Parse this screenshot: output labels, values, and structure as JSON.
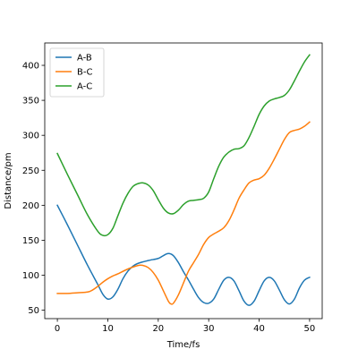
{
  "chart_data": {
    "type": "line",
    "xlabel": "Time/fs",
    "ylabel": "Distance/pm",
    "xlim": [
      -2.5,
      52.5
    ],
    "ylim": [
      38,
      432
    ],
    "xticks": [
      0,
      10,
      20,
      30,
      40,
      50
    ],
    "yticks": [
      50,
      100,
      150,
      200,
      250,
      300,
      350,
      400
    ],
    "grid": false,
    "legend": "top-left",
    "series": [
      {
        "name": "A-B",
        "color": "#1f77b4",
        "x": [
          0,
          2,
          4,
          6,
          8,
          9,
          10,
          11,
          12,
          13,
          14,
          15,
          16,
          18,
          20,
          21,
          22,
          23,
          24,
          25,
          26,
          27,
          28,
          29,
          30,
          31,
          32,
          33,
          34,
          35,
          36,
          37,
          38,
          39,
          40,
          41,
          42,
          43,
          44,
          45,
          46,
          47,
          48,
          49,
          50
        ],
        "y": [
          200,
          172,
          143,
          114,
          87,
          73,
          66,
          69,
          80,
          95,
          106,
          113,
          117,
          121,
          124,
          128,
          131,
          128,
          118,
          105,
          93,
          80,
          68,
          61,
          60,
          66,
          80,
          93,
          97,
          92,
          78,
          63,
          57,
          63,
          78,
          92,
          97,
          92,
          79,
          65,
          59,
          66,
          82,
          93,
          97
        ]
      },
      {
        "name": "B-C",
        "color": "#ff7f0e",
        "x": [
          0,
          2,
          4,
          6,
          7,
          8,
          9,
          10,
          11,
          12,
          14,
          16,
          17,
          18,
          19,
          20,
          21,
          22,
          22.5,
          23,
          24,
          25,
          26,
          27,
          28,
          29,
          30,
          31,
          32,
          33,
          34,
          35,
          36,
          37,
          38,
          39,
          40,
          41,
          42,
          43,
          44,
          45,
          46,
          47,
          48,
          49,
          50
        ],
        "y": [
          74,
          74,
          75,
          76,
          79,
          84,
          90,
          95,
          99,
          102,
          109,
          114,
          114,
          111,
          104,
          93,
          78,
          63,
          59,
          60,
          72,
          89,
          106,
          118,
          130,
          144,
          154,
          159,
          163,
          168,
          178,
          193,
          210,
          222,
          232,
          236,
          238,
          243,
          253,
          266,
          280,
          294,
          304,
          307,
          309,
          313,
          319
        ]
      },
      {
        "name": "A-C",
        "color": "#2ca02c",
        "x": [
          0,
          2,
          4,
          6,
          8,
          9,
          10,
          11,
          12,
          13,
          14,
          15,
          16,
          17,
          18,
          19,
          20,
          21,
          22,
          23,
          24,
          25,
          26,
          27,
          28,
          29,
          30,
          31,
          32,
          33,
          34,
          35,
          36,
          37,
          38,
          39,
          40,
          41,
          42,
          43,
          44,
          45,
          46,
          47,
          48,
          49,
          50
        ],
        "y": [
          274,
          244,
          215,
          186,
          163,
          157,
          158,
          167,
          185,
          203,
          217,
          227,
          231,
          232,
          229,
          221,
          208,
          196,
          189,
          188,
          193,
          201,
          206,
          207,
          208,
          210,
          219,
          238,
          256,
          269,
          276,
          280,
          281,
          285,
          297,
          313,
          330,
          342,
          349,
          352,
          354,
          357,
          365,
          378,
          392,
          405,
          415
        ]
      }
    ]
  }
}
